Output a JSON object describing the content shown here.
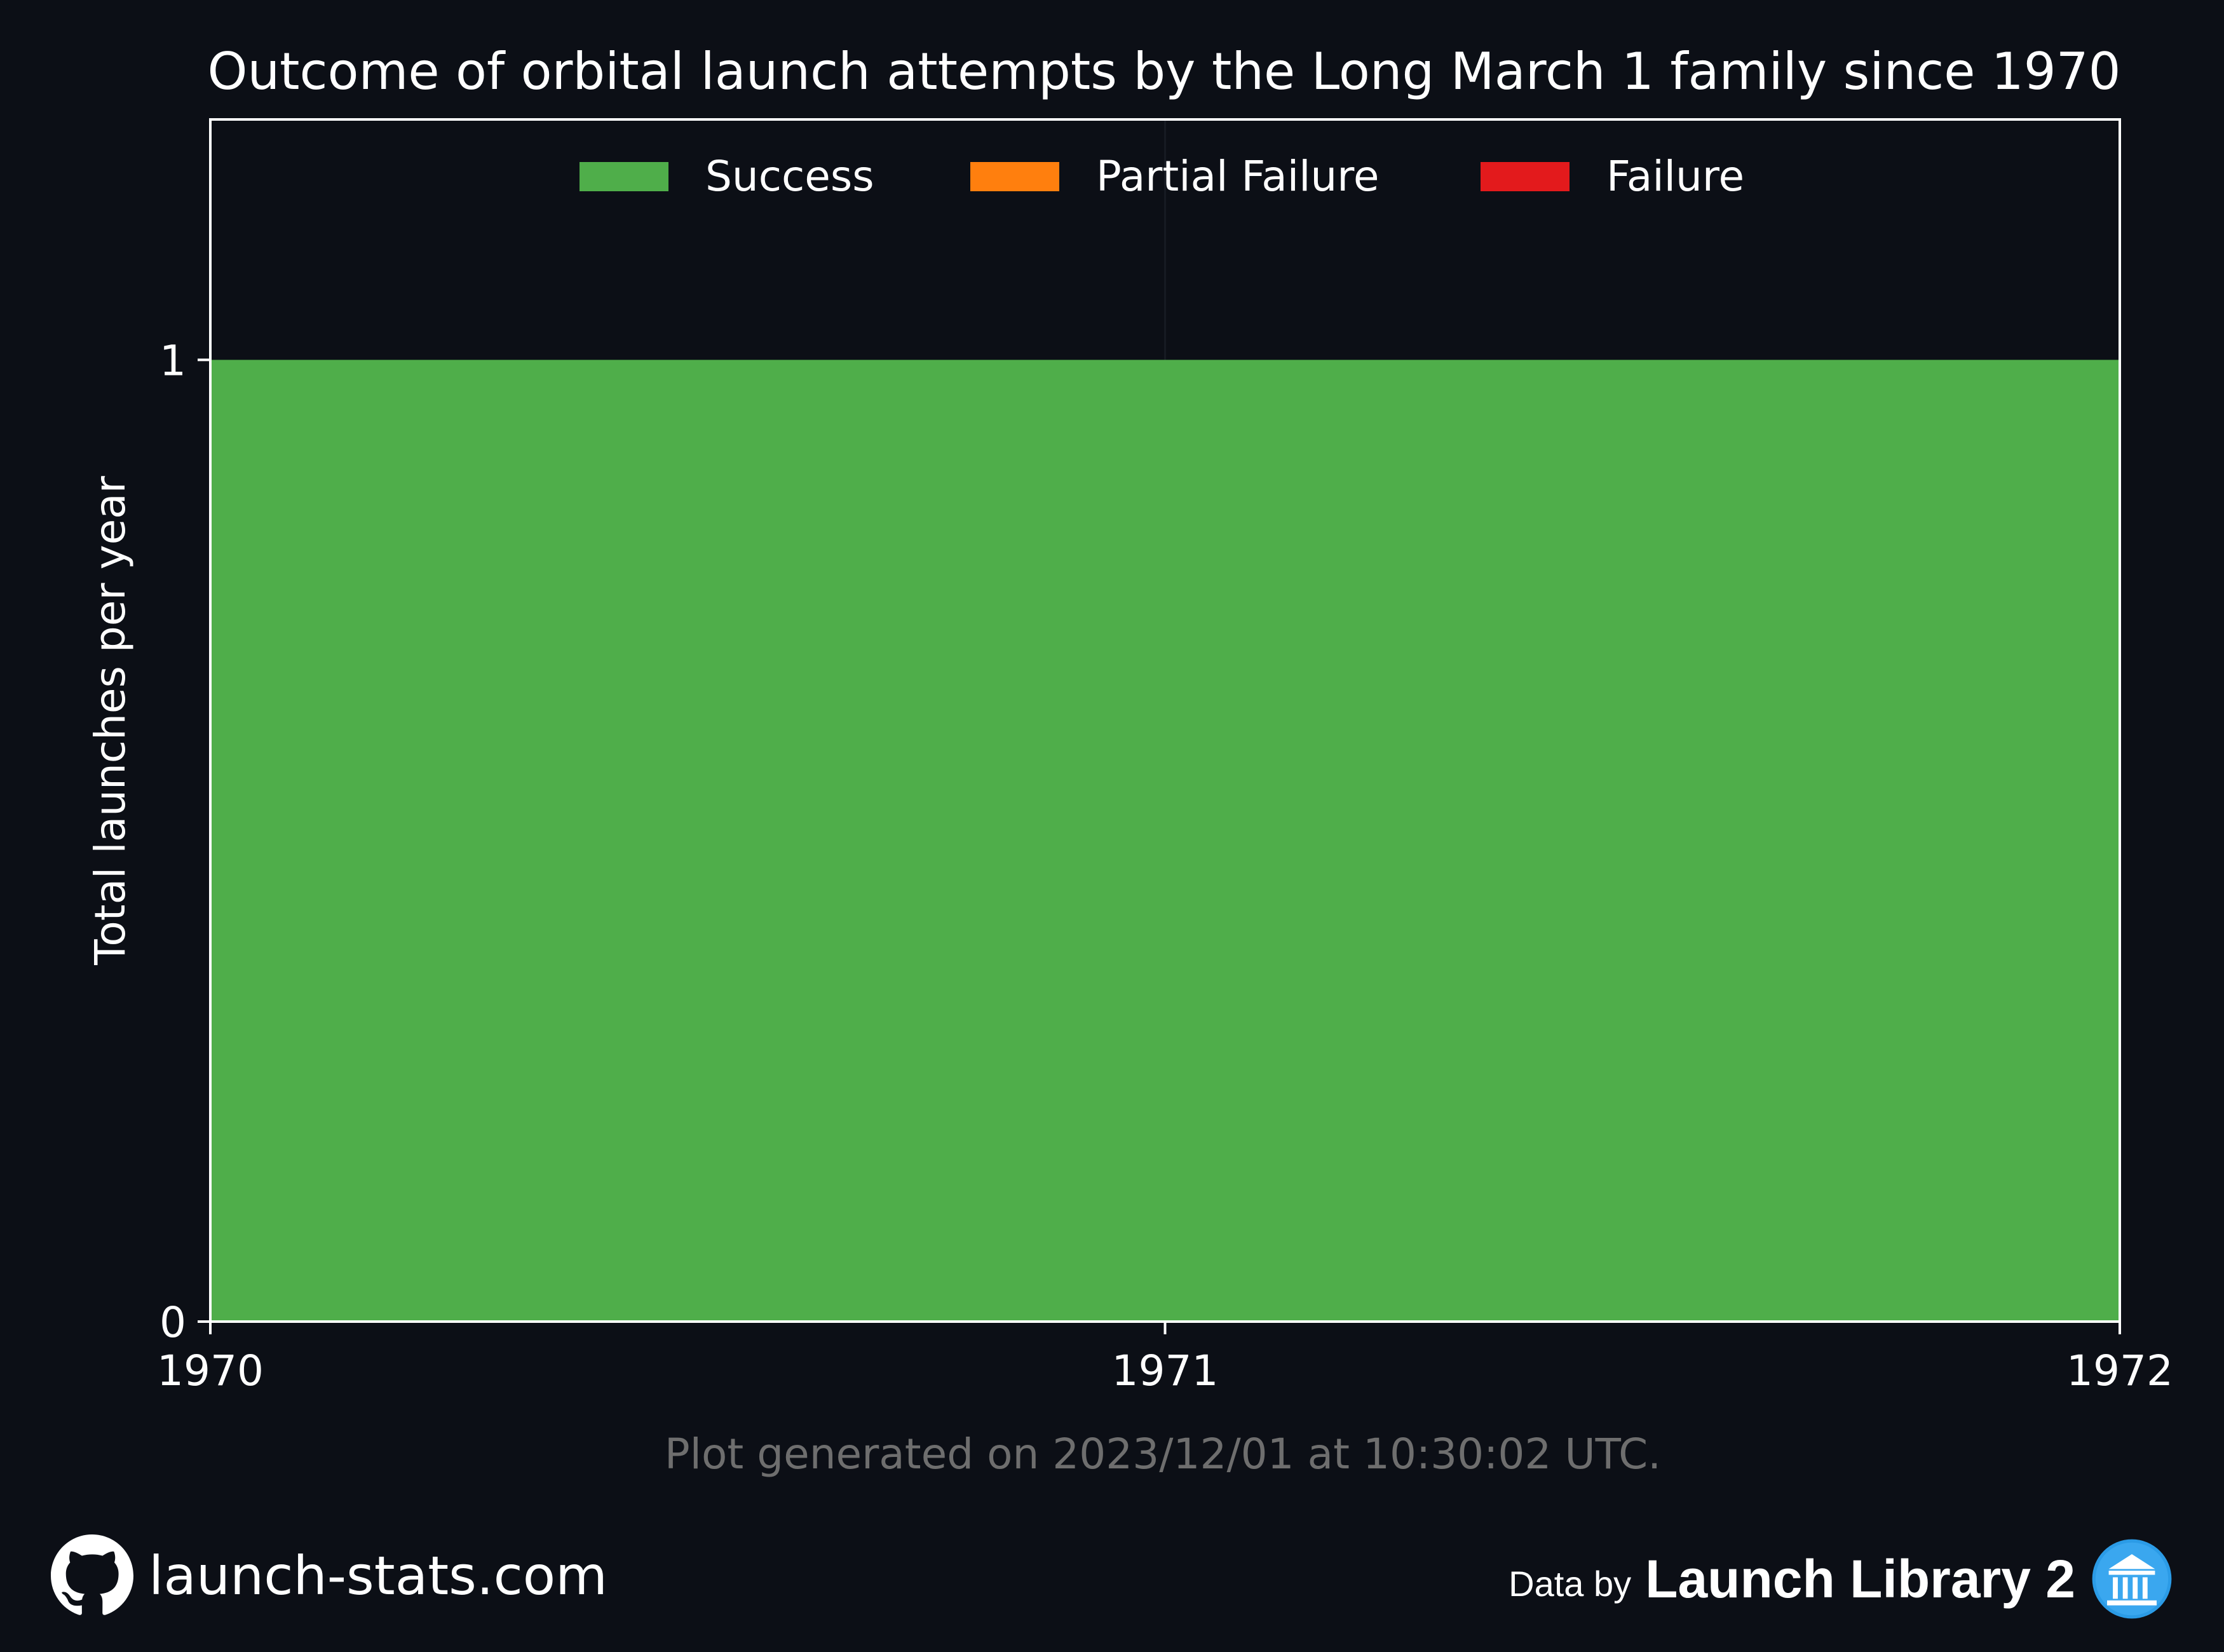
{
  "chart_data": {
    "type": "area",
    "stacked": true,
    "title": "Outcome of orbital launch attempts by the Long March 1 family since 1970",
    "xlabel": "",
    "ylabel": "Total launches per year",
    "x": [
      1970,
      1971,
      1972
    ],
    "x_ticks": [
      "1970",
      "1971",
      "1972"
    ],
    "y_ticks": [
      "0",
      "1"
    ],
    "xlim": [
      1970,
      1972
    ],
    "ylim": [
      0,
      1.25
    ],
    "grid": false,
    "legend": "top-center",
    "series": [
      {
        "name": "Success",
        "color": "#4fae4a",
        "values": [
          1,
          1,
          1
        ]
      },
      {
        "name": "Partial Failure",
        "color": "#ff7f0e",
        "values": [
          0,
          0,
          0
        ]
      },
      {
        "name": "Failure",
        "color": "#e31a1c",
        "values": [
          0,
          0,
          0
        ]
      }
    ]
  },
  "footer": {
    "generated": "Plot generated on 2023/12/01 at 10:30:02 UTC.",
    "site": "launch-stats.com",
    "data_by": "Data by",
    "source": "Launch Library 2"
  },
  "icons": {
    "site": "github-icon",
    "source": "launch-library-icon"
  },
  "colors": {
    "background": "#0c0f16",
    "text": "#ffffff",
    "muted": "#6e6e6e"
  }
}
